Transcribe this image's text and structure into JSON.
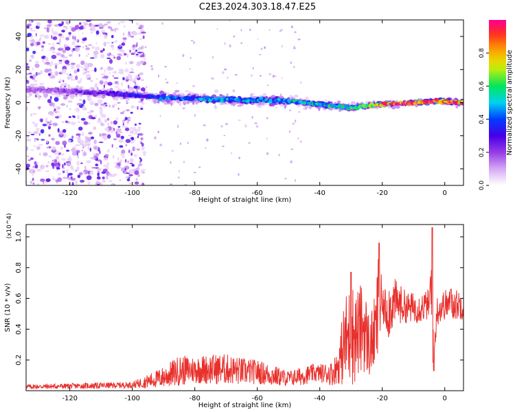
{
  "title": "C2E3.2024.303.18.47.E25",
  "colors": {
    "trace": "#e8302c",
    "axis": "#000000",
    "background": "#ffffff"
  },
  "chart_data": [
    {
      "type": "heatmap",
      "name": "spectrogram",
      "title": "C2E3.2024.303.18.47.E25",
      "xlabel": "Height of straight line (km)",
      "ylabel": "Frequency (Hz)",
      "xlim": [
        -134,
        6
      ],
      "ylim": [
        -50,
        50
      ],
      "xticks": [
        -120,
        -100,
        -80,
        -60,
        -40,
        -20,
        0
      ],
      "yticks": [
        -40,
        -20,
        0,
        20,
        40
      ],
      "colorbar": {
        "label": "Normalized spectral amplitude",
        "range": [
          0,
          1
        ],
        "ticks": [
          0.0,
          0.2,
          0.4,
          0.6,
          0.8
        ],
        "tick_labels": [
          "0.0",
          "0.2",
          "0.4",
          "0.6",
          "0.8"
        ]
      },
      "ridge": {
        "description": "main spectral band",
        "x": [
          -134,
          -110,
          -90,
          -70,
          -50,
          -40,
          -30,
          -25,
          -20,
          -10,
          -2,
          6
        ],
        "center_hz": [
          8,
          6,
          3,
          2,
          1,
          -1,
          -3,
          -2,
          -1,
          0,
          1,
          0
        ],
        "halfwidth_hz": [
          9,
          7,
          6,
          6,
          5,
          4,
          4,
          3,
          2,
          2,
          2,
          2
        ],
        "peak_amplitude": [
          0.15,
          0.25,
          0.4,
          0.45,
          0.45,
          0.5,
          0.55,
          0.6,
          0.85,
          0.95,
          0.9,
          0.9
        ]
      },
      "scatter_region": {
        "x_range": [
          -134,
          -96
        ],
        "freq_range": [
          -50,
          50
        ],
        "amplitude": 0.1
      }
    },
    {
      "type": "line",
      "name": "snr",
      "xlabel": "Height of straight line (km)",
      "ylabel": "SNR (10 * v/v)",
      "y_multiplier": "(x10^4)",
      "xlim": [
        -134,
        6
      ],
      "ylim": [
        0,
        1.08
      ],
      "xticks": [
        -120,
        -100,
        -80,
        -60,
        -40,
        -20,
        0
      ],
      "yticks": [
        0.2,
        0.4,
        0.6,
        0.8,
        1.0
      ],
      "ytick_labels": [
        "0.2",
        "0.4",
        "0.6",
        "0.8",
        "1.0"
      ],
      "envelope": {
        "x": [
          -134,
          -110,
          -100,
          -96,
          -90,
          -85,
          -80,
          -75,
          -70,
          -65,
          -60,
          -55,
          -50,
          -46,
          -42,
          -40,
          -36,
          -34,
          -32,
          -30,
          -28,
          -26,
          -24,
          -22,
          -21,
          -20,
          -18,
          -16,
          -12,
          -8,
          -5,
          -4,
          -3.5,
          -2.5,
          0,
          3,
          6
        ],
        "base": [
          0.02,
          0.025,
          0.03,
          0.04,
          0.06,
          0.09,
          0.1,
          0.1,
          0.1,
          0.09,
          0.09,
          0.07,
          0.06,
          0.07,
          0.09,
          0.09,
          0.08,
          0.12,
          0.2,
          0.22,
          0.25,
          0.3,
          0.2,
          0.3,
          0.4,
          0.5,
          0.45,
          0.52,
          0.5,
          0.5,
          0.52,
          0.45,
          0.2,
          0.48,
          0.52,
          0.52,
          0.52
        ],
        "noise": [
          0.015,
          0.02,
          0.02,
          0.04,
          0.07,
          0.1,
          0.09,
          0.1,
          0.1,
          0.09,
          0.08,
          0.07,
          0.05,
          0.06,
          0.06,
          0.06,
          0.08,
          0.12,
          0.3,
          0.35,
          0.3,
          0.3,
          0.2,
          0.25,
          0.45,
          0.1,
          0.2,
          0.15,
          0.1,
          0.1,
          0.1,
          0.5,
          0.1,
          0.1,
          0.1,
          0.1,
          0.1
        ]
      },
      "peaks": [
        {
          "x": -30,
          "y": 0.77
        },
        {
          "x": -21,
          "y": 0.96
        },
        {
          "x": -4,
          "y": 1.06
        },
        {
          "x": 2,
          "y": 0.66
        },
        {
          "x": -3.5,
          "y": 0.13
        }
      ]
    }
  ]
}
